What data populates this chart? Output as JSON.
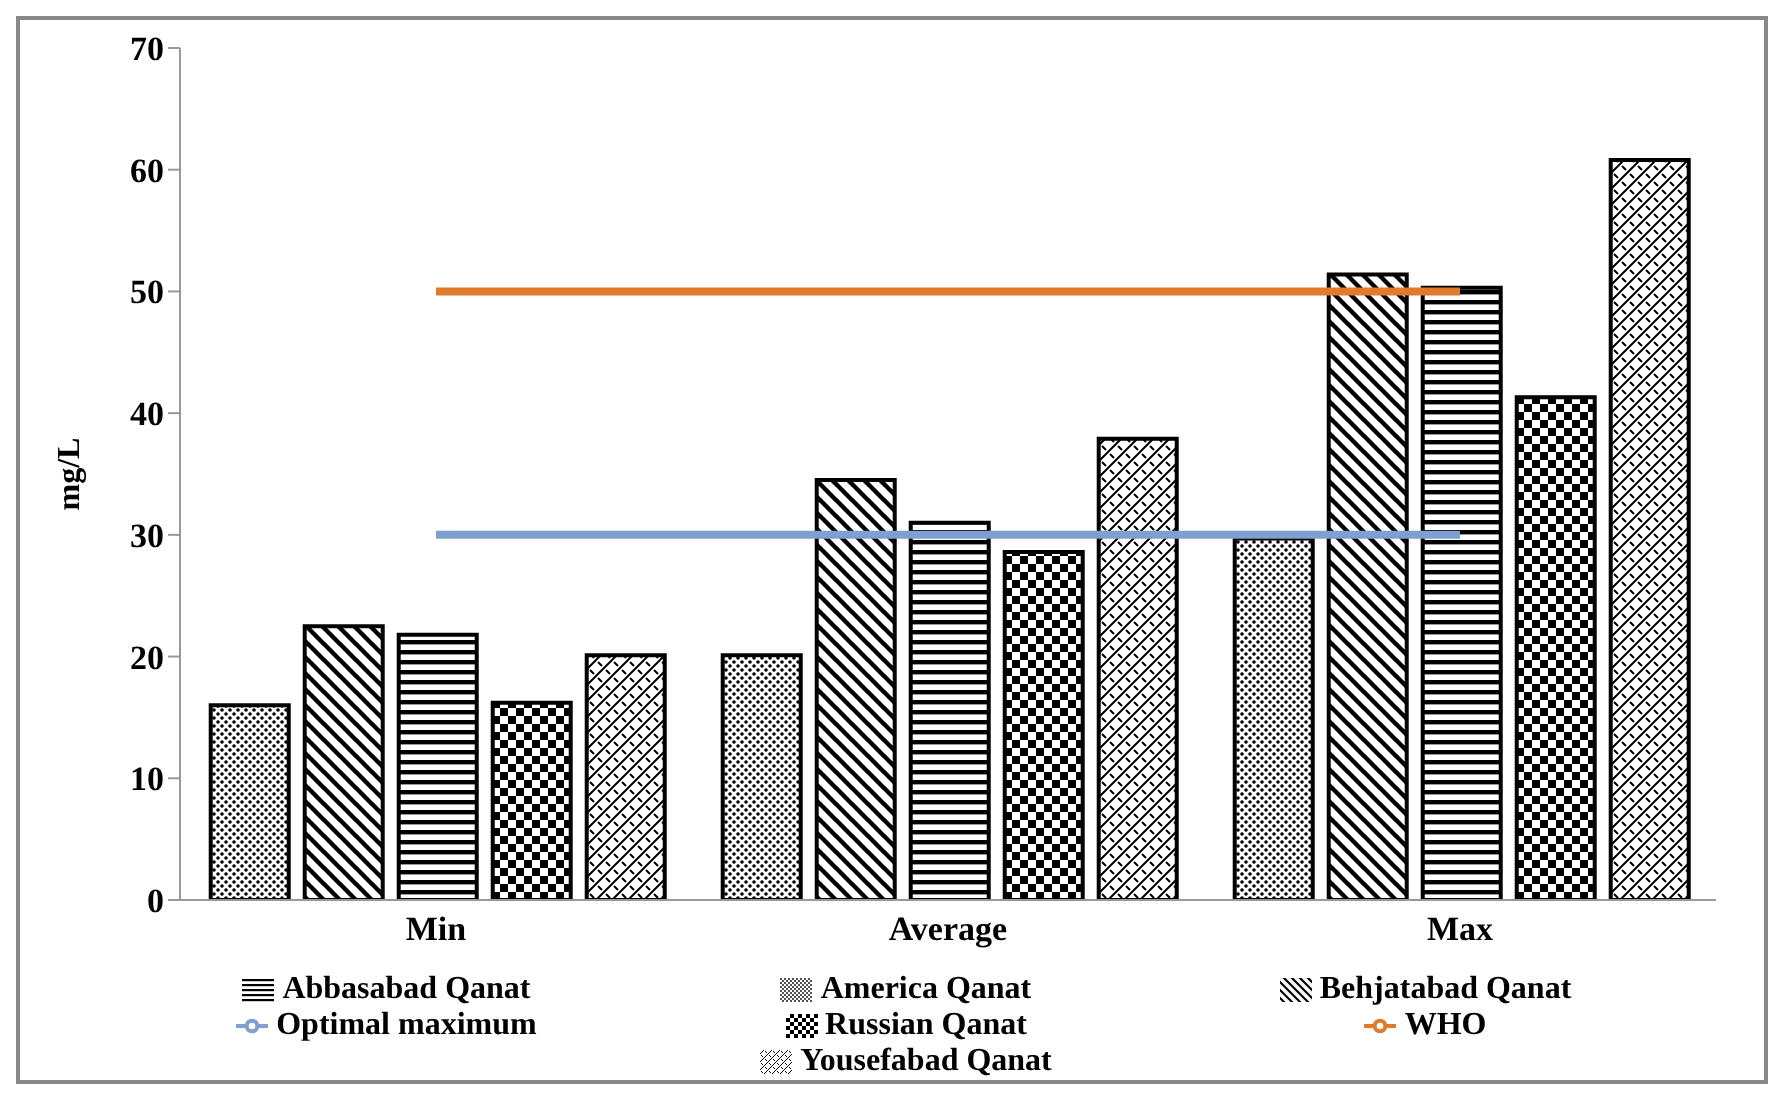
{
  "chart_data": {
    "type": "bar",
    "ylabel": "mg/L",
    "categories": [
      "Min",
      "Average",
      "Max"
    ],
    "series": [
      {
        "name": "America Qanat",
        "color": "#000000",
        "values": [
          16,
          20.1,
          29.7
        ]
      },
      {
        "name": "Behjatabad Qanat",
        "color": "#000000",
        "values": [
          22.5,
          34.5,
          51.4
        ]
      },
      {
        "name": "Abbasabad Qanat",
        "color": "#000000",
        "values": [
          21.8,
          31,
          50.3
        ]
      },
      {
        "name": "Russian Qanat",
        "color": "#000000",
        "values": [
          16.2,
          28.6,
          41.3
        ]
      },
      {
        "name": "Yousefabad Qanat",
        "color": "#000000",
        "values": [
          20.1,
          37.9,
          60.8
        ]
      },
      {
        "name": "WHO",
        "type": "line",
        "color": "#e07b2c",
        "values": [
          50,
          50,
          50
        ]
      },
      {
        "name": "Optimal maximum",
        "type": "line",
        "color": "#7f9fd1",
        "values": [
          30,
          30,
          30
        ]
      }
    ],
    "ylim": [
      0,
      70
    ],
    "yticks": [
      0,
      10,
      20,
      30,
      40,
      50,
      60,
      70
    ],
    "legend": "bottom",
    "marker": "none",
    "line_style": "solid"
  }
}
